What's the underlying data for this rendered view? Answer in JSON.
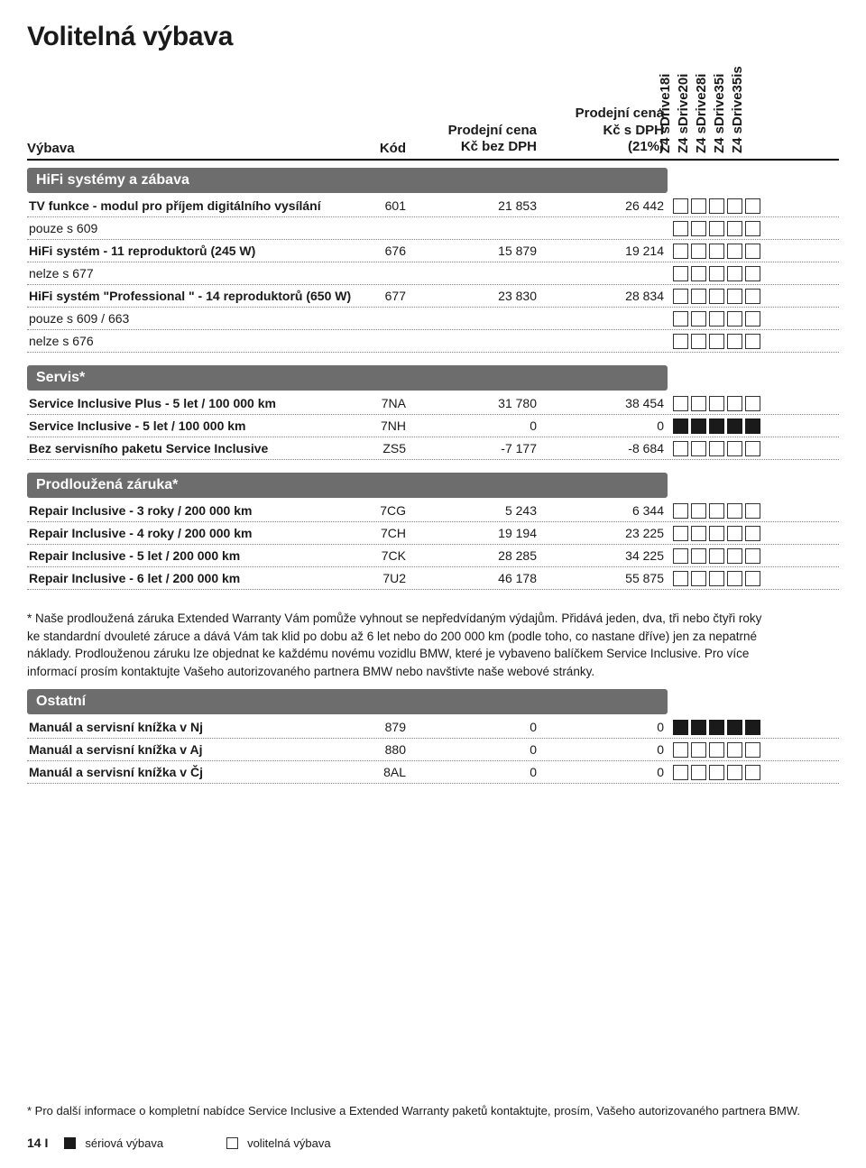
{
  "page_title": "Volitelná výbava",
  "header": {
    "label": "Výbava",
    "kod": "Kód",
    "price1_l1": "Prodejní cena",
    "price1_l2": "Kč bez DPH",
    "price2_l1": "Prodejní cena",
    "price2_l2": "Kč s DPH",
    "price2_l3": "(21%)"
  },
  "models": [
    "Z4 sDrive18i",
    "Z4 sDrive20i",
    "Z4 sDrive28i",
    "Z4 sDrive35i",
    "Z4 sDrive35is"
  ],
  "sections": [
    {
      "title": "HiFi systémy a zábava",
      "rows": [
        {
          "label": "TV funkce - modul pro příjem digitálního vysílání",
          "bold": true,
          "kod": "601",
          "p1": "21 853",
          "p2": "26 442",
          "boxes": [
            "e",
            "e",
            "e",
            "e",
            "e"
          ]
        },
        {
          "label": "pouze s 609",
          "bold": false,
          "kod": "",
          "p1": "",
          "p2": "",
          "boxes": [
            "e",
            "e",
            "e",
            "e",
            "e"
          ]
        },
        {
          "label": "HiFi systém - 11 reproduktorů (245 W)",
          "bold": true,
          "kod": "676",
          "p1": "15 879",
          "p2": "19 214",
          "boxes": [
            "e",
            "e",
            "e",
            "e",
            "e"
          ]
        },
        {
          "label": "nelze s 677",
          "bold": false,
          "kod": "",
          "p1": "",
          "p2": "",
          "boxes": [
            "e",
            "e",
            "e",
            "e",
            "e"
          ]
        },
        {
          "label": "HiFi systém \"Professional \" - 14 reproduktorů (650 W)",
          "bold": true,
          "kod": "677",
          "p1": "23 830",
          "p2": "28 834",
          "boxes": [
            "e",
            "e",
            "e",
            "e",
            "e"
          ]
        },
        {
          "label": "pouze s 609 / 663",
          "bold": false,
          "kod": "",
          "p1": "",
          "p2": "",
          "boxes": [
            "e",
            "e",
            "e",
            "e",
            "e"
          ]
        },
        {
          "label": "nelze s 676",
          "bold": false,
          "kod": "",
          "p1": "",
          "p2": "",
          "boxes": [
            "e",
            "e",
            "e",
            "e",
            "e"
          ]
        }
      ]
    },
    {
      "title": "Servis*",
      "rows": [
        {
          "label": "Service Inclusive Plus - 5 let / 100 000 km",
          "bold": true,
          "kod": "7NA",
          "p1": "31 780",
          "p2": "38 454",
          "boxes": [
            "e",
            "e",
            "e",
            "e",
            "e"
          ]
        },
        {
          "label": "Service Inclusive - 5 let / 100 000 km",
          "bold": true,
          "kod": "7NH",
          "p1": "0",
          "p2": "0",
          "boxes": [
            "f",
            "f",
            "f",
            "f",
            "f"
          ]
        },
        {
          "label": "Bez servisního paketu Service Inclusive",
          "bold": true,
          "kod": "ZS5",
          "p1": "-7 177",
          "p2": "-8 684",
          "boxes": [
            "e",
            "e",
            "e",
            "e",
            "e"
          ]
        }
      ]
    },
    {
      "title": "Prodloužená záruka*",
      "rows": [
        {
          "label": "Repair Inclusive - 3 roky / 200 000 km",
          "bold": true,
          "kod": "7CG",
          "p1": "5 243",
          "p2": "6 344",
          "boxes": [
            "e",
            "e",
            "e",
            "e",
            "e"
          ]
        },
        {
          "label": "Repair Inclusive - 4 roky / 200 000 km",
          "bold": true,
          "kod": "7CH",
          "p1": "19 194",
          "p2": "23 225",
          "boxes": [
            "e",
            "e",
            "e",
            "e",
            "e"
          ]
        },
        {
          "label": "Repair Inclusive - 5 let / 200 000 km",
          "bold": true,
          "kod": "7CK",
          "p1": "28 285",
          "p2": "34 225",
          "boxes": [
            "e",
            "e",
            "e",
            "e",
            "e"
          ]
        },
        {
          "label": "Repair Inclusive - 6 let / 200 000 km",
          "bold": true,
          "kod": "7U2",
          "p1": "46 178",
          "p2": "55 875",
          "boxes": [
            "e",
            "e",
            "e",
            "e",
            "e"
          ]
        }
      ]
    }
  ],
  "warranty_note": "* Naše prodloužená záruka Extended Warranty Vám pomůže vyhnout se nepředvídaným výdajům. Přidává jeden, dva, tři nebo čtyři roky ke standardní dvouleté záruce a dává Vám tak klid po dobu až 6 let nebo do 200 000 km (podle toho, co nastane dříve) jen za nepatrné náklady. Prodlouženou záruku lze objednat ke každému novému vozidlu BMW, které je vybaveno balíčkem Service Inclusive. Pro více informací prosím kontaktujte Vašeho autorizovaného partnera BMW nebo navštivte naše webové stránky.",
  "ostatni": {
    "title": "Ostatní",
    "rows": [
      {
        "label": "Manuál a servisní knížka v Nj",
        "bold": true,
        "kod": "879",
        "p1": "0",
        "p2": "0",
        "boxes": [
          "f",
          "f",
          "f",
          "f",
          "f"
        ]
      },
      {
        "label": "Manuál a servisní knížka v Aj",
        "bold": true,
        "kod": "880",
        "p1": "0",
        "p2": "0",
        "boxes": [
          "e",
          "e",
          "e",
          "e",
          "e"
        ]
      },
      {
        "label": "Manuál a servisní knížka v Čj",
        "bold": true,
        "kod": "8AL",
        "p1": "0",
        "p2": "0",
        "boxes": [
          "e",
          "e",
          "e",
          "e",
          "e"
        ]
      }
    ]
  },
  "footer_note": "* Pro další informace o kompletní nabídce Service Inclusive a Extended Warranty paketů kontaktujte, prosím, Vašeho autorizovaného partnera BMW.",
  "page_number": "14 I",
  "legend_serial": "sériová výbava",
  "legend_optional": "volitelná výbava"
}
